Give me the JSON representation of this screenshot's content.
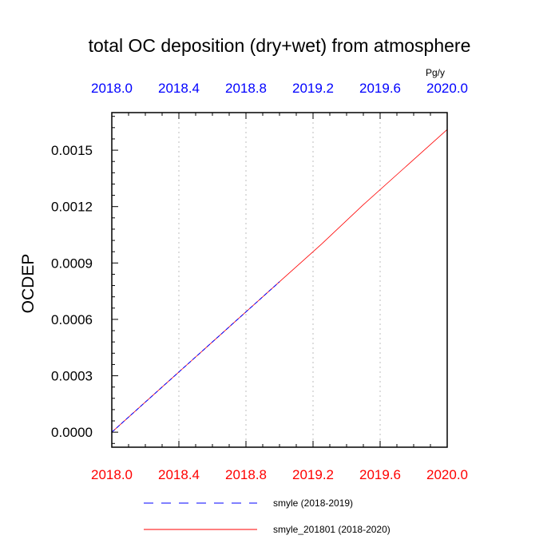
{
  "chart_data": {
    "type": "line",
    "title": "total OC deposition (dry+wet) from atmosphere",
    "ylabel": "OCDEP",
    "units": "Pg/y",
    "xlim": [
      2018.0,
      2020.0
    ],
    "ylim": [
      -8e-05,
      0.0017
    ],
    "x_ticks": [
      2018.0,
      2018.4,
      2018.8,
      2019.2,
      2019.6,
      2020.0
    ],
    "x_tick_labels": [
      "2018.0",
      "2018.4",
      "2018.8",
      "2019.2",
      "2019.6",
      "2020.0"
    ],
    "y_ticks": [
      0.0,
      0.0003,
      0.0006,
      0.0009,
      0.0012,
      0.0015
    ],
    "y_tick_labels": [
      "0.0000",
      "0.0003",
      "0.0006",
      "0.0009",
      "0.0012",
      "0.0015"
    ],
    "top_axis_color": "#0000ff",
    "bottom_axis_color": "#ff0000",
    "grid": "vertical dotted",
    "legend_position": "bottom",
    "series": [
      {
        "name": "smyle (2018-2019)",
        "color": "#0000ff",
        "dash": "dashed",
        "x": [
          2018.0,
          2018.25,
          2018.5,
          2018.75,
          2019.0
        ],
        "y": [
          0.0,
          0.0002,
          0.0004,
          0.0006,
          0.0008
        ]
      },
      {
        "name": "smyle_201801 (2018-2020)",
        "color": "#ff0000",
        "dash": "solid",
        "x": [
          2018.0,
          2018.25,
          2018.5,
          2018.75,
          2019.0,
          2019.25,
          2019.5,
          2019.75,
          2020.0
        ],
        "y": [
          0.0,
          0.0002,
          0.0004,
          0.0006,
          0.0008,
          0.001,
          0.00121,
          0.00141,
          0.00161
        ]
      }
    ]
  }
}
